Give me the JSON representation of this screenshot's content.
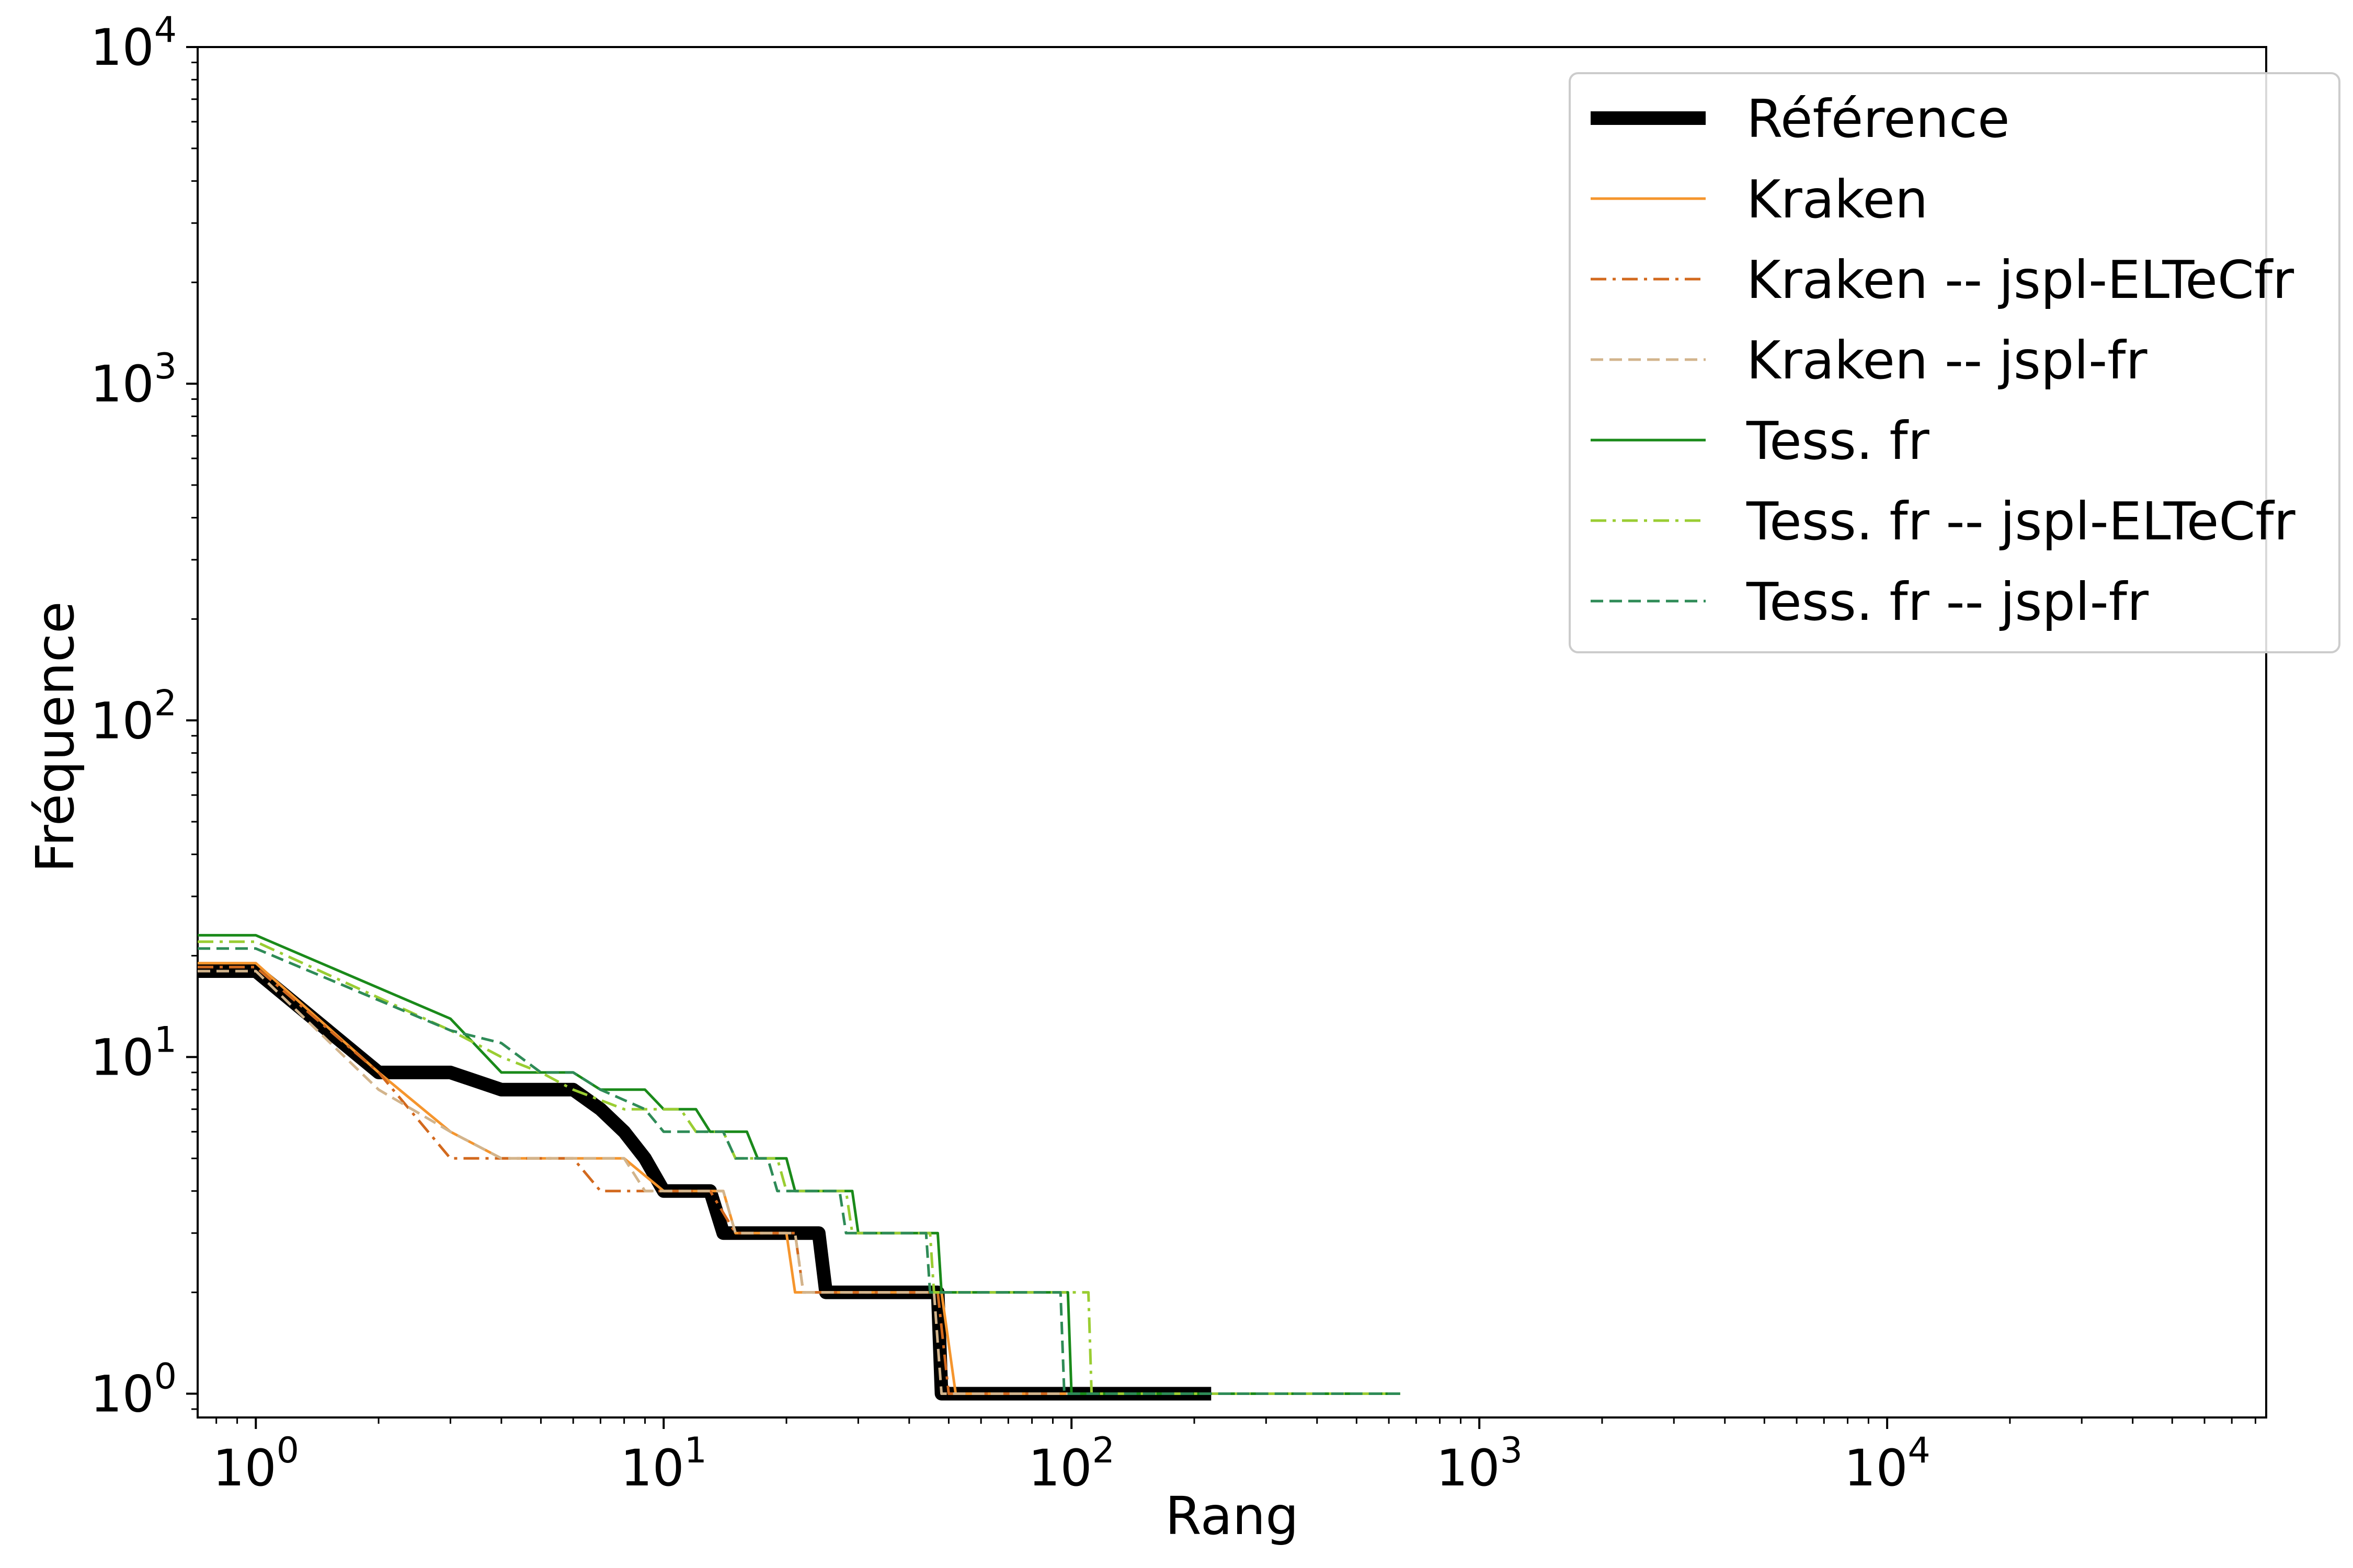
{
  "chart_data": {
    "type": "line",
    "title": "",
    "xlabel": "Rang",
    "ylabel": "Fréquence",
    "xscale": "log",
    "yscale": "log",
    "xlim": [
      0.72,
      85000
    ],
    "ylim": [
      0.85,
      10000
    ],
    "grid": false,
    "legend_position": "top-right",
    "xticks": [
      {
        "base": "10",
        "exp": "0"
      },
      {
        "base": "10",
        "exp": "1"
      },
      {
        "base": "10",
        "exp": "2"
      },
      {
        "base": "10",
        "exp": "3"
      },
      {
        "base": "10",
        "exp": "4"
      }
    ],
    "yticks": [
      {
        "base": "10",
        "exp": "0"
      },
      {
        "base": "10",
        "exp": "1"
      },
      {
        "base": "10",
        "exp": "2"
      },
      {
        "base": "10",
        "exp": "3"
      },
      {
        "base": "10",
        "exp": "4"
      }
    ],
    "series": [
      {
        "name": "Référence",
        "color": "#000000",
        "width": 26,
        "dash": "",
        "points": [
          [
            0.72,
            18
          ],
          [
            1,
            18
          ],
          [
            2,
            9
          ],
          [
            3,
            9
          ],
          [
            4,
            8
          ],
          [
            5,
            8
          ],
          [
            6,
            8
          ],
          [
            7,
            7
          ],
          [
            8,
            6
          ],
          [
            9,
            5
          ],
          [
            10,
            4
          ],
          [
            11,
            4
          ],
          [
            12,
            4
          ],
          [
            13,
            4
          ],
          [
            14,
            3
          ],
          [
            15,
            3
          ],
          [
            16,
            3
          ],
          [
            17,
            3
          ],
          [
            18,
            3
          ],
          [
            19,
            3
          ],
          [
            20,
            3
          ],
          [
            21,
            3
          ],
          [
            22,
            3
          ],
          [
            23,
            3
          ],
          [
            24,
            3
          ],
          [
            25,
            2
          ],
          [
            47,
            2
          ],
          [
            48,
            1
          ],
          [
            220,
            1
          ]
        ]
      },
      {
        "name": "Kraken",
        "color": "#f5952d",
        "width": 5,
        "dash": "",
        "points": [
          [
            0.72,
            19
          ],
          [
            1,
            19
          ],
          [
            2,
            9
          ],
          [
            3,
            6
          ],
          [
            4,
            5
          ],
          [
            8,
            5
          ],
          [
            10,
            4
          ],
          [
            14,
            4
          ],
          [
            15,
            3
          ],
          [
            20,
            3
          ],
          [
            21,
            2
          ],
          [
            48,
            2
          ],
          [
            52,
            1
          ],
          [
            220,
            1
          ]
        ]
      },
      {
        "name": "Kraken -- jspl-ELTeCfr",
        "color": "#d2691e",
        "width": 5,
        "dash": "30 12 6 12",
        "points": [
          [
            0.72,
            18.5
          ],
          [
            1,
            18.5
          ],
          [
            2,
            9
          ],
          [
            3,
            5
          ],
          [
            6,
            5
          ],
          [
            7,
            4
          ],
          [
            13,
            4
          ],
          [
            15,
            3
          ],
          [
            21,
            3
          ],
          [
            22,
            2
          ],
          [
            47,
            2
          ],
          [
            50,
            1
          ],
          [
            220,
            1
          ]
        ]
      },
      {
        "name": "Kraken -- jspl-fr",
        "color": "#d2b48c",
        "width": 5,
        "dash": "24 12",
        "points": [
          [
            0.72,
            18
          ],
          [
            1,
            18
          ],
          [
            2,
            8
          ],
          [
            3,
            6
          ],
          [
            4,
            5
          ],
          [
            8,
            5
          ],
          [
            9,
            4
          ],
          [
            14,
            4
          ],
          [
            15,
            3
          ],
          [
            21,
            3
          ],
          [
            22,
            2
          ],
          [
            46,
            2
          ],
          [
            48,
            1
          ],
          [
            220,
            1
          ]
        ]
      },
      {
        "name": "Tess. fr",
        "color": "#1a8a1a",
        "width": 5,
        "dash": "",
        "points": [
          [
            0.72,
            23
          ],
          [
            1,
            23
          ],
          [
            3,
            13
          ],
          [
            4,
            9
          ],
          [
            6,
            9
          ],
          [
            7,
            8
          ],
          [
            9,
            8
          ],
          [
            10,
            7
          ],
          [
            12,
            7
          ],
          [
            13,
            6
          ],
          [
            16,
            6
          ],
          [
            17,
            5
          ],
          [
            20,
            5
          ],
          [
            21,
            4
          ],
          [
            29,
            4
          ],
          [
            30,
            3
          ],
          [
            47,
            3
          ],
          [
            48,
            2
          ],
          [
            98,
            2
          ],
          [
            100,
            1
          ],
          [
            640,
            1
          ]
        ]
      },
      {
        "name": "Tess. fr -- jspl-ELTeCfr",
        "color": "#9acd32",
        "width": 5,
        "dash": "30 12 6 12",
        "points": [
          [
            0.72,
            22
          ],
          [
            1,
            22
          ],
          [
            3,
            12
          ],
          [
            4,
            10
          ],
          [
            5,
            9
          ],
          [
            6,
            8
          ],
          [
            8,
            7
          ],
          [
            11,
            7
          ],
          [
            12,
            6
          ],
          [
            14,
            6
          ],
          [
            15,
            5
          ],
          [
            19,
            5
          ],
          [
            20,
            4
          ],
          [
            28,
            4
          ],
          [
            29,
            3
          ],
          [
            45,
            3
          ],
          [
            46,
            2
          ],
          [
            110,
            2
          ],
          [
            112,
            1
          ],
          [
            640,
            1
          ]
        ]
      },
      {
        "name": "Tess. fr -- jspl-fr",
        "color": "#2e8b57",
        "width": 5,
        "dash": "24 12",
        "points": [
          [
            0.72,
            21
          ],
          [
            1,
            21
          ],
          [
            3,
            12
          ],
          [
            4,
            11
          ],
          [
            5,
            9
          ],
          [
            6,
            9
          ],
          [
            7,
            8
          ],
          [
            9,
            7
          ],
          [
            10,
            6
          ],
          [
            14,
            6
          ],
          [
            15,
            5
          ],
          [
            18,
            5
          ],
          [
            19,
            4
          ],
          [
            27,
            4
          ],
          [
            28,
            3
          ],
          [
            44,
            3
          ],
          [
            45,
            2
          ],
          [
            94,
            2
          ],
          [
            96,
            1
          ],
          [
            640,
            1
          ]
        ]
      }
    ]
  }
}
